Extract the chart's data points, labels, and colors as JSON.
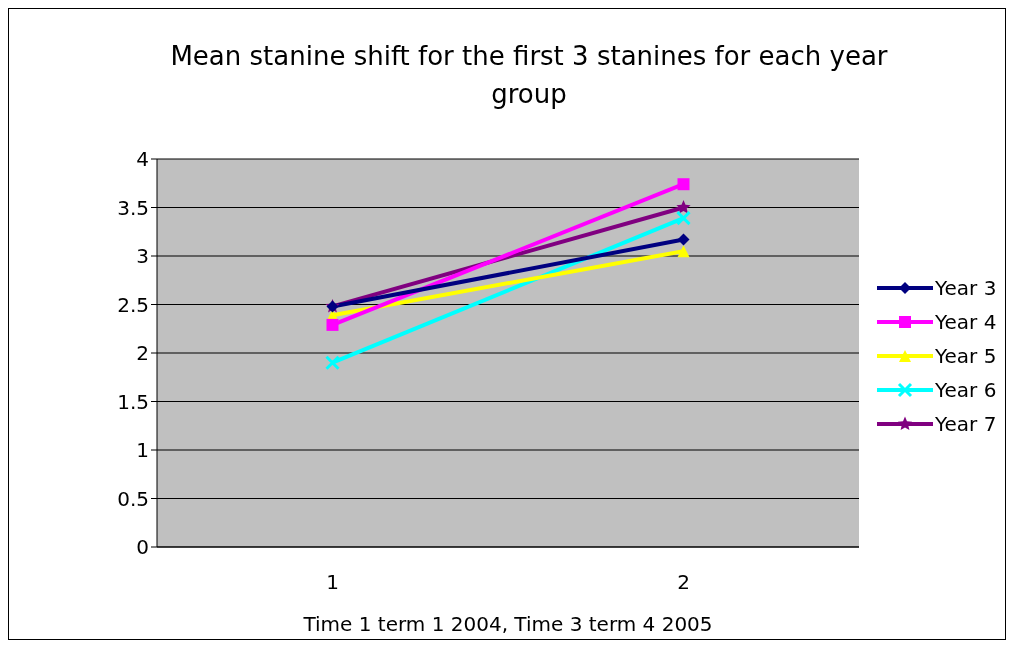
{
  "chart_data": {
    "type": "line",
    "title": "Mean stanine shift for the first 3 stanines for each year group",
    "xlabel": "Time 1 term 1 2004, Time 3 term 4 2005",
    "categories": [
      "1",
      "2"
    ],
    "series": [
      {
        "name": "Year 3",
        "color": "#000080",
        "marker": "diamond",
        "values": [
          2.48,
          3.17
        ]
      },
      {
        "name": "Year 4",
        "color": "#ff00ff",
        "marker": "square",
        "values": [
          2.29,
          3.74
        ]
      },
      {
        "name": "Year 5",
        "color": "#ffff00",
        "marker": "triangle",
        "values": [
          2.39,
          3.05
        ]
      },
      {
        "name": "Year 6",
        "color": "#00ffff",
        "marker": "cross",
        "values": [
          1.9,
          3.39
        ]
      },
      {
        "name": "Year 7",
        "color": "#800080",
        "marker": "star",
        "values": [
          2.48,
          3.5
        ]
      }
    ],
    "ylim": [
      0,
      4
    ],
    "yticks": [
      0,
      0.5,
      1,
      1.5,
      2,
      2.5,
      3,
      3.5,
      4
    ],
    "grid": "y",
    "legend": "right",
    "line_style": "solid"
  }
}
